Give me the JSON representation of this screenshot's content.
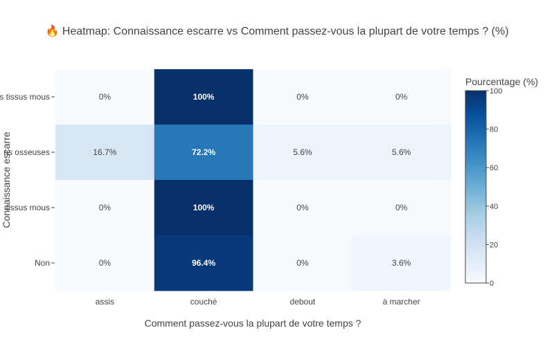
{
  "chart_data": {
    "type": "heatmap",
    "title": "🔥 Heatmap: Connaissance escarre vs Comment passez-vous la plupart de votre temps ? (%)",
    "xlabel": "Comment passez-vous la plupart de votre temps ?",
    "ylabel": "Connaissance escarre",
    "x_categories": [
      "assis",
      "couché",
      "debout",
      "à marcher"
    ],
    "y_categories": [
      "s tissus mous",
      "ns osseuses",
      "tissus mous",
      "Non"
    ],
    "values": [
      [
        0,
        100,
        0,
        0
      ],
      [
        16.7,
        72.2,
        5.6,
        5.6
      ],
      [
        0,
        100,
        0,
        0
      ],
      [
        0,
        96.4,
        0,
        3.6
      ]
    ],
    "labels": [
      [
        "0%",
        "100%",
        "0%",
        "0%"
      ],
      [
        "16.7%",
        "72.2%",
        "5.6%",
        "5.6%"
      ],
      [
        "0%",
        "100%",
        "0%",
        "0%"
      ],
      [
        "0%",
        "96.4%",
        "0%",
        "3.6%"
      ]
    ],
    "colorbar": {
      "title": "Pourcentage (%)",
      "range": [
        0,
        100
      ],
      "ticks": [
        "0",
        "20",
        "40",
        "60",
        "80",
        "100"
      ],
      "colorscale": [
        "#f7fbff",
        "#deebf7",
        "#c6dbef",
        "#9ecae1",
        "#6baed6",
        "#4292c6",
        "#2171b5",
        "#08519c",
        "#08306b"
      ]
    }
  }
}
